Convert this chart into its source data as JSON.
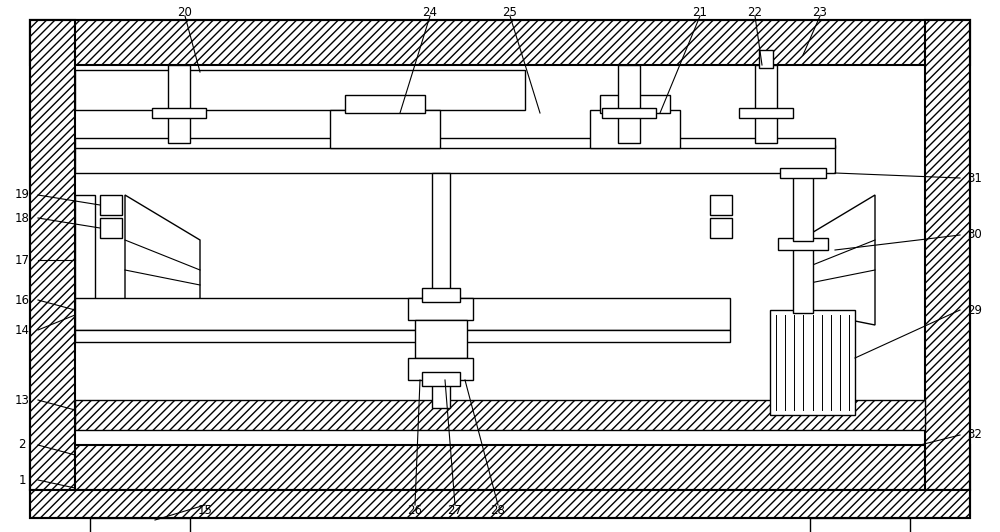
{
  "fig_width": 10.0,
  "fig_height": 5.32,
  "bg_color": "#ffffff",
  "line_color": "#000000",
  "label_fontsize": 8.5
}
